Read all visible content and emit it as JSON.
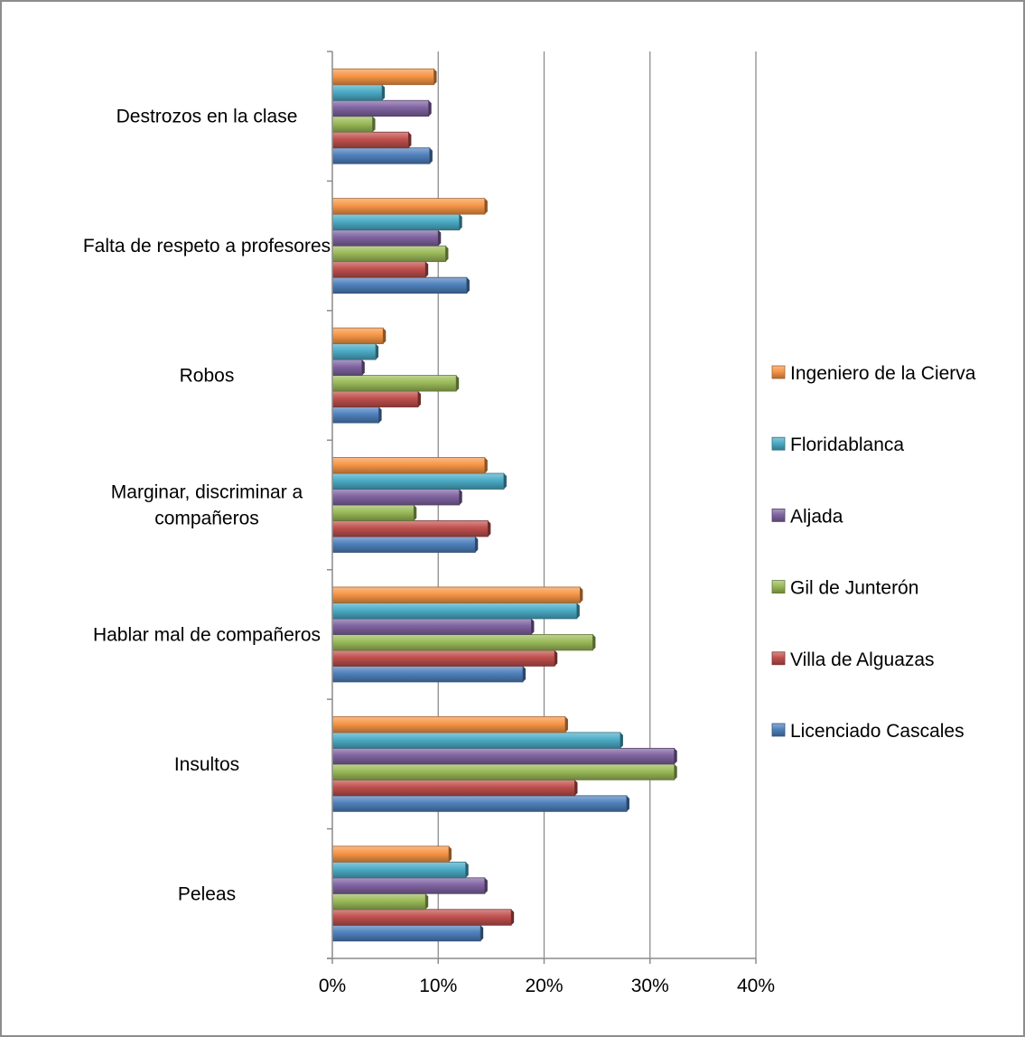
{
  "chart_data": {
    "type": "bar",
    "orientation": "horizontal",
    "categories": [
      "Peleas",
      "Insultos",
      "Hablar mal de compañeros",
      "Marginar, discriminar a compañeros",
      "Robos",
      "Falta de respeto a profesores",
      "Destrozos en la clase"
    ],
    "series": [
      {
        "name": "Licenciado Cascales",
        "color": "#4f81bd",
        "values": [
          14,
          27.8,
          18,
          13.5,
          4.4,
          12.7,
          9.2
        ]
      },
      {
        "name": "Villa de Alguazas",
        "color": "#c0504d",
        "values": [
          16.9,
          22.9,
          21,
          14.7,
          8.1,
          8.8,
          7.2
        ]
      },
      {
        "name": "Gil de Junterón",
        "color": "#9bbb59",
        "values": [
          8.8,
          32.3,
          24.6,
          7.7,
          11.7,
          10.7,
          3.8
        ]
      },
      {
        "name": "Aljada",
        "color": "#8064a2",
        "values": [
          14.4,
          32.3,
          18.8,
          12,
          2.8,
          10,
          9.1
        ]
      },
      {
        "name": "Floridablanca",
        "color": "#4bacc6",
        "values": [
          12.6,
          27.2,
          23.1,
          16.2,
          4.1,
          12,
          4.7
        ]
      },
      {
        "name": "Ingeniero de la Cierva",
        "color": "#f79646",
        "values": [
          11,
          22,
          23.4,
          14.4,
          4.8,
          14.4,
          9.6
        ]
      }
    ],
    "category_label_lines": [
      [
        "Peleas"
      ],
      [
        "Insultos"
      ],
      [
        "Hablar mal de compañeros"
      ],
      [
        "Marginar, discriminar a",
        "compañeros"
      ],
      [
        "Robos"
      ],
      [
        "Falta de respeto a profesores"
      ],
      [
        "Destrozos en la clase"
      ]
    ],
    "x_ticks": [
      "0%",
      "10%",
      "20%",
      "30%",
      "40%"
    ],
    "xlim": [
      0,
      40
    ],
    "x_unit": "%",
    "grid": "vertical major gridlines",
    "legend": "right, reversed order",
    "title": "",
    "xlabel": "",
    "ylabel": ""
  }
}
